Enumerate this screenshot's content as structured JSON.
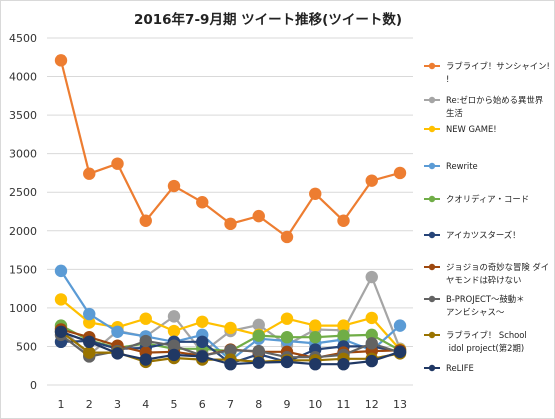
{
  "chart_data": {
    "type": "line",
    "title": "2016年7-9月期 ツイート推移(ツイート数)",
    "xlabel": "",
    "ylabel": "",
    "x": [
      1,
      2,
      3,
      4,
      5,
      6,
      7,
      8,
      9,
      10,
      11,
      12,
      13
    ],
    "ylim": [
      0,
      4500
    ],
    "yticks": [
      0,
      500,
      1000,
      1500,
      2000,
      2500,
      3000,
      3500,
      4000,
      4500
    ],
    "grid": true,
    "legend_position": "right",
    "series": [
      {
        "name": "ラブライブ！サンシャイン!!",
        "color": "#ED7D31",
        "values": [
          4210,
          2740,
          2870,
          2130,
          2580,
          2370,
          2090,
          2190,
          1920,
          2480,
          2130,
          2650,
          2750
        ]
      },
      {
        "name": "Re:ゼロから始める異世界生活",
        "color": "#A5A5A5",
        "values": [
          740,
          390,
          700,
          630,
          890,
          420,
          700,
          780,
          520,
          720,
          710,
          1400,
          470
        ]
      },
      {
        "name": "NEW GAME!",
        "color": "#FFC000",
        "values": [
          1110,
          810,
          750,
          860,
          700,
          820,
          740,
          650,
          860,
          770,
          770,
          870,
          460
        ]
      },
      {
        "name": "Rewrite",
        "color": "#5B9BD5",
        "values": [
          1480,
          920,
          690,
          630,
          560,
          650,
          320,
          600,
          570,
          540,
          590,
          450,
          770
        ]
      },
      {
        "name": "クオリディア・コード",
        "color": "#70AD47",
        "values": [
          770,
          580,
          480,
          540,
          470,
          470,
          440,
          640,
          620,
          620,
          640,
          650,
          450
        ]
      },
      {
        "name": "アイカツスターズ！",
        "color": "#264478",
        "values": [
          560,
          570,
          470,
          480,
          560,
          560,
          280,
          400,
          300,
          460,
          500,
          500,
          430
        ]
      },
      {
        "name": "ジョジョの奇妙な冒険 ダイヤモンドは砕けない",
        "color": "#9E480E",
        "values": [
          720,
          620,
          510,
          420,
          430,
          380,
          460,
          430,
          430,
          350,
          420,
          440,
          450
        ]
      },
      {
        "name": "B-PROJECT～鼓動＊アンビシャス～",
        "color": "#636363",
        "values": [
          650,
          370,
          440,
          570,
          510,
          380,
          450,
          440,
          360,
          360,
          390,
          540,
          420
        ]
      },
      {
        "name": "ラブライブ！ School idol project(第2期)",
        "color": "#997300",
        "values": [
          690,
          420,
          420,
          300,
          350,
          330,
          330,
          300,
          320,
          320,
          340,
          340,
          410
        ]
      },
      {
        "name": "ReLIFE",
        "color": "#203864",
        "values": [
          690,
          560,
          410,
          330,
          390,
          370,
          270,
          290,
          300,
          270,
          270,
          310,
          430
        ]
      }
    ]
  }
}
